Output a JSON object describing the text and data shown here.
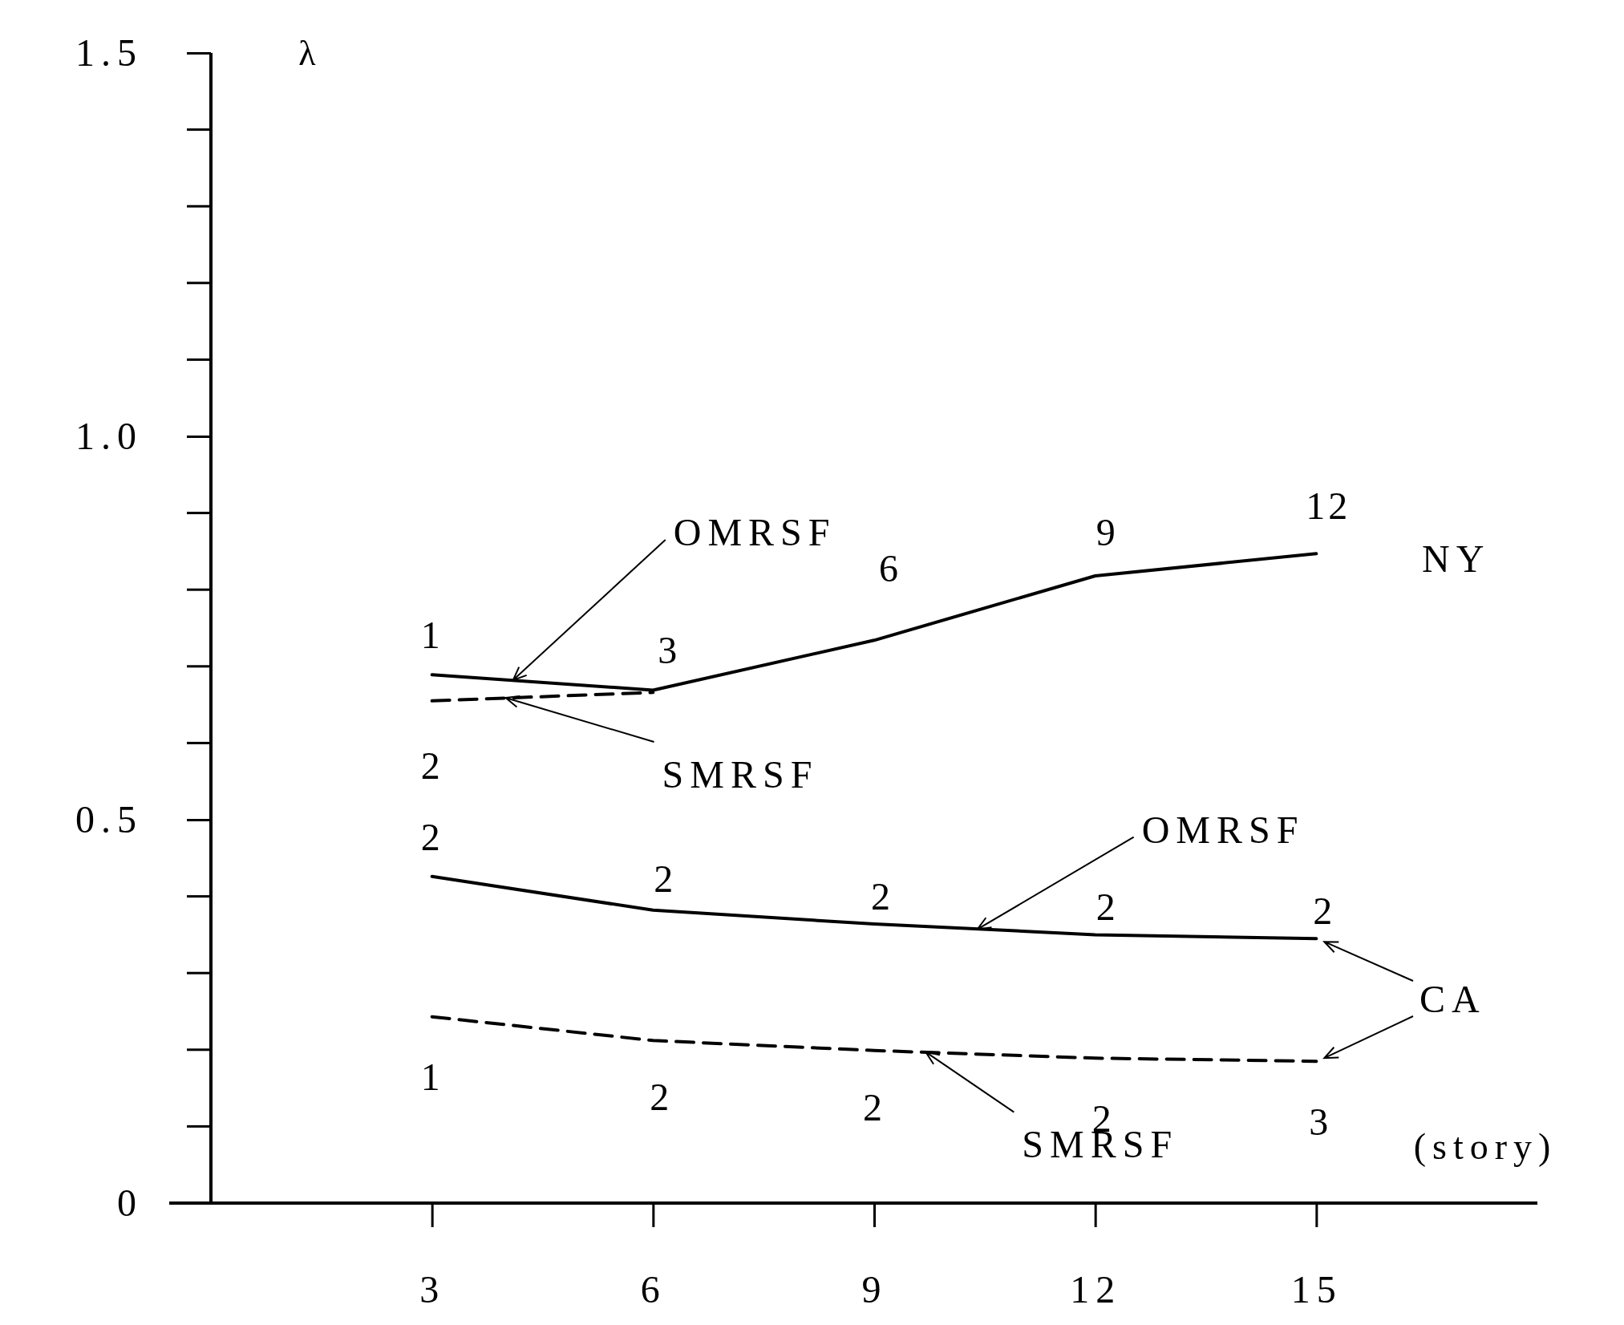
{
  "chart_data": {
    "type": "line",
    "ylabel": "λ",
    "xlabel": "(story)",
    "xlim": [
      0,
      18
    ],
    "xticks": [
      3,
      6,
      9,
      12,
      15
    ],
    "ylim": [
      0,
      1.5
    ],
    "yticks": [
      0,
      0.5,
      {
        "value": 1,
        "label": "1.0"
      },
      1.5
    ],
    "series": [
      {
        "color": "#000000",
        "line_style": "solid",
        "x": [
          3,
          6,
          9,
          12,
          15
        ],
        "values": [
          0.689,
          0.669,
          0.734,
          0.818,
          0.847
        ]
      },
      {
        "color": "#000000",
        "line_style": "dashed",
        "x": [
          3,
          6
        ],
        "values": [
          0.655,
          0.666
        ]
      },
      {
        "color": "#000000",
        "line_style": "solid",
        "x": [
          3,
          6,
          9,
          12,
          15
        ],
        "values": [
          0.426,
          0.382,
          0.364,
          0.35,
          0.345
        ]
      },
      {
        "color": "#000000",
        "line_style": "dashed",
        "x": [
          3,
          6,
          9,
          12,
          15
        ],
        "values": [
          0.243,
          0.212,
          0.199,
          0.189,
          0.185
        ]
      }
    ],
    "annotations": [
      {
        "text": "1",
        "x": 3,
        "y": 0.689
      },
      {
        "text": "3",
        "x": 6,
        "y": 0.669
      },
      {
        "text": "6",
        "x": 9,
        "y": 0.734
      },
      {
        "text": "9",
        "x": 12,
        "y": 0.818
      },
      {
        "text": "12",
        "x": 15,
        "y": 0.847
      },
      {
        "text": "2",
        "x": 3,
        "y": 0.655
      },
      {
        "text": "2",
        "x": 3,
        "y": 0.426
      },
      {
        "text": "2",
        "x": 6,
        "y": 0.382
      },
      {
        "text": "2",
        "x": 9,
        "y": 0.364
      },
      {
        "text": "2",
        "x": 12,
        "y": 0.35
      },
      {
        "text": "2",
        "x": 15,
        "y": 0.345
      },
      {
        "text": "1",
        "x": 3,
        "y": 0.243
      },
      {
        "text": "2",
        "x": 6,
        "y": 0.212
      },
      {
        "text": "2",
        "x": 9,
        "y": 0.199
      },
      {
        "text": "2",
        "x": 12,
        "y": 0.189
      },
      {
        "text": "3",
        "x": 15,
        "y": 0.185
      },
      {
        "text": "OMRSF",
        "x": 4.1,
        "y": 0.682
      },
      {
        "text": "SMRSF",
        "x": 4,
        "y": 0.659
      },
      {
        "text": "OMRSF",
        "x": 10.4,
        "y": 0.357
      },
      {
        "text": "SMRSF",
        "x": 9.7,
        "y": 0.197
      },
      "NY",
      "CA"
    ]
  }
}
